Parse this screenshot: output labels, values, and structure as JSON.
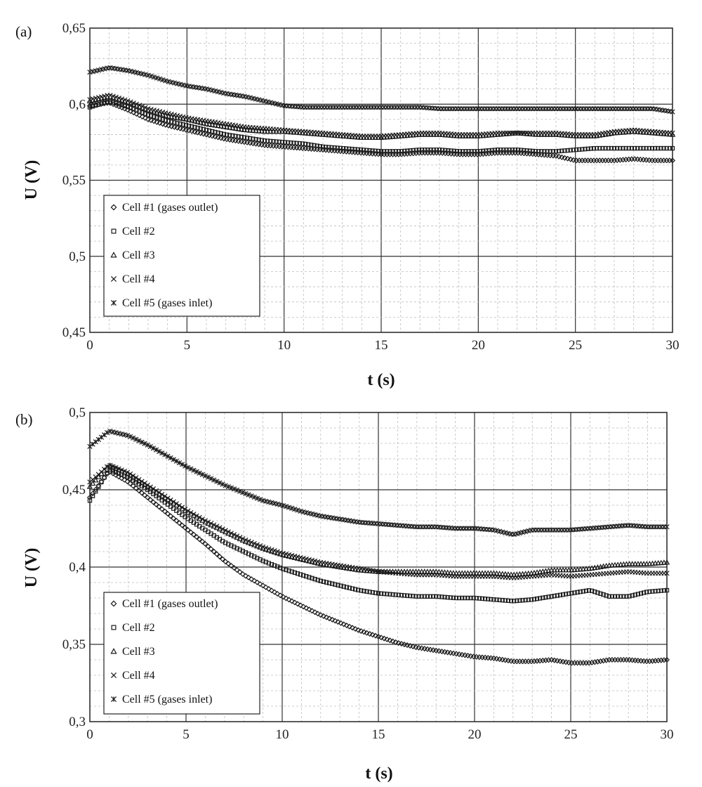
{
  "chart_data": [
    {
      "panel": "(a)",
      "type": "scatter",
      "xlabel": "t (s)",
      "ylabel": "U (V)",
      "xlim": [
        0,
        30
      ],
      "ylim": [
        0.45,
        0.65
      ],
      "xticks": [
        "0",
        "5",
        "10",
        "15",
        "20",
        "25",
        "30"
      ],
      "yticks": [
        "0,45",
        "0,5",
        "0,55",
        "0,6",
        "0,65"
      ],
      "grid": true,
      "legend": "lower-left",
      "x": [
        0,
        1,
        2,
        3,
        4,
        5,
        6,
        7,
        8,
        9,
        10,
        11,
        12,
        13,
        14,
        15,
        16,
        17,
        18,
        19,
        20,
        21,
        22,
        23,
        24,
        25,
        26,
        27,
        28,
        29,
        30
      ],
      "series": [
        {
          "name": "Cell #1 (gases outlet)",
          "marker": "diamond",
          "values": [
            0.599,
            0.601,
            0.596,
            0.59,
            0.586,
            0.583,
            0.58,
            0.577,
            0.575,
            0.573,
            0.572,
            0.571,
            0.57,
            0.569,
            0.568,
            0.567,
            0.567,
            0.568,
            0.568,
            0.567,
            0.567,
            0.568,
            0.568,
            0.567,
            0.566,
            0.563,
            0.563,
            0.563,
            0.564,
            0.563,
            0.563
          ]
        },
        {
          "name": "Cell #2",
          "marker": "square",
          "values": [
            0.598,
            0.602,
            0.598,
            0.593,
            0.589,
            0.586,
            0.583,
            0.58,
            0.578,
            0.576,
            0.575,
            0.574,
            0.572,
            0.571,
            0.57,
            0.569,
            0.569,
            0.57,
            0.57,
            0.569,
            0.569,
            0.57,
            0.57,
            0.569,
            0.569,
            0.57,
            0.571,
            0.571,
            0.571,
            0.571,
            0.571
          ]
        },
        {
          "name": "Cell #3",
          "marker": "triangle",
          "values": [
            0.602,
            0.605,
            0.601,
            0.596,
            0.592,
            0.59,
            0.587,
            0.585,
            0.583,
            0.582,
            0.582,
            0.581,
            0.58,
            0.579,
            0.578,
            0.578,
            0.579,
            0.58,
            0.58,
            0.579,
            0.579,
            0.58,
            0.581,
            0.58,
            0.58,
            0.579,
            0.579,
            0.581,
            0.582,
            0.581,
            0.58
          ]
        },
        {
          "name": "Cell #4",
          "marker": "cross",
          "values": [
            0.603,
            0.606,
            0.602,
            0.597,
            0.594,
            0.591,
            0.589,
            0.587,
            0.585,
            0.584,
            0.583,
            0.582,
            0.581,
            0.58,
            0.579,
            0.579,
            0.58,
            0.581,
            0.581,
            0.58,
            0.58,
            0.581,
            0.581,
            0.581,
            0.581,
            0.58,
            0.58,
            0.582,
            0.583,
            0.582,
            0.581
          ]
        },
        {
          "name": "Cell #5 (gases inlet)",
          "marker": "asterisk",
          "values": [
            0.621,
            0.624,
            0.622,
            0.619,
            0.615,
            0.612,
            0.61,
            0.607,
            0.605,
            0.602,
            0.599,
            0.598,
            0.598,
            0.598,
            0.598,
            0.598,
            0.598,
            0.598,
            0.597,
            0.597,
            0.597,
            0.597,
            0.597,
            0.597,
            0.597,
            0.597,
            0.597,
            0.597,
            0.597,
            0.597,
            0.595
          ]
        }
      ]
    },
    {
      "panel": "(b)",
      "type": "scatter",
      "xlabel": "t (s)",
      "ylabel": "U (V)",
      "xlim": [
        0,
        30
      ],
      "ylim": [
        0.3,
        0.5
      ],
      "xticks": [
        "0",
        "5",
        "10",
        "15",
        "20",
        "25",
        "30"
      ],
      "yticks": [
        "0,3",
        "0,35",
        "0,4",
        "0,45",
        "0,5"
      ],
      "grid": true,
      "legend": "lower-left",
      "x": [
        0,
        1,
        2,
        3,
        4,
        5,
        6,
        7,
        8,
        9,
        10,
        11,
        12,
        13,
        14,
        15,
        16,
        17,
        18,
        19,
        20,
        21,
        22,
        23,
        24,
        25,
        26,
        27,
        28,
        29,
        30
      ],
      "series": [
        {
          "name": "Cell #1 (gases outlet)",
          "marker": "diamond",
          "values": [
            0.445,
            0.462,
            0.455,
            0.445,
            0.435,
            0.425,
            0.415,
            0.404,
            0.395,
            0.388,
            0.381,
            0.375,
            0.369,
            0.364,
            0.359,
            0.355,
            0.351,
            0.348,
            0.346,
            0.344,
            0.342,
            0.341,
            0.339,
            0.339,
            0.34,
            0.338,
            0.338,
            0.34,
            0.34,
            0.339,
            0.34
          ]
        },
        {
          "name": "Cell #2",
          "marker": "square",
          "values": [
            0.443,
            0.463,
            0.458,
            0.45,
            0.441,
            0.432,
            0.424,
            0.416,
            0.41,
            0.404,
            0.399,
            0.395,
            0.391,
            0.388,
            0.385,
            0.383,
            0.382,
            0.381,
            0.381,
            0.38,
            0.38,
            0.379,
            0.378,
            0.379,
            0.381,
            0.383,
            0.385,
            0.381,
            0.381,
            0.384,
            0.385
          ]
        },
        {
          "name": "Cell #3",
          "marker": "triangle",
          "values": [
            0.452,
            0.466,
            0.46,
            0.452,
            0.444,
            0.436,
            0.429,
            0.423,
            0.417,
            0.412,
            0.408,
            0.405,
            0.402,
            0.4,
            0.398,
            0.397,
            0.397,
            0.397,
            0.397,
            0.396,
            0.396,
            0.396,
            0.395,
            0.396,
            0.398,
            0.398,
            0.399,
            0.401,
            0.402,
            0.402,
            0.403
          ]
        },
        {
          "name": "Cell #4",
          "marker": "cross",
          "values": [
            0.455,
            0.466,
            0.461,
            0.453,
            0.445,
            0.437,
            0.43,
            0.424,
            0.418,
            0.413,
            0.409,
            0.406,
            0.403,
            0.401,
            0.399,
            0.397,
            0.396,
            0.395,
            0.395,
            0.394,
            0.394,
            0.394,
            0.393,
            0.394,
            0.395,
            0.394,
            0.395,
            0.396,
            0.397,
            0.396,
            0.396
          ]
        },
        {
          "name": "Cell #5 (gases inlet)",
          "marker": "asterisk",
          "values": [
            0.478,
            0.488,
            0.485,
            0.479,
            0.472,
            0.465,
            0.459,
            0.453,
            0.448,
            0.443,
            0.44,
            0.436,
            0.433,
            0.431,
            0.429,
            0.428,
            0.427,
            0.426,
            0.426,
            0.425,
            0.425,
            0.424,
            0.421,
            0.424,
            0.424,
            0.424,
            0.425,
            0.426,
            0.427,
            0.426,
            0.426
          ]
        }
      ]
    }
  ]
}
